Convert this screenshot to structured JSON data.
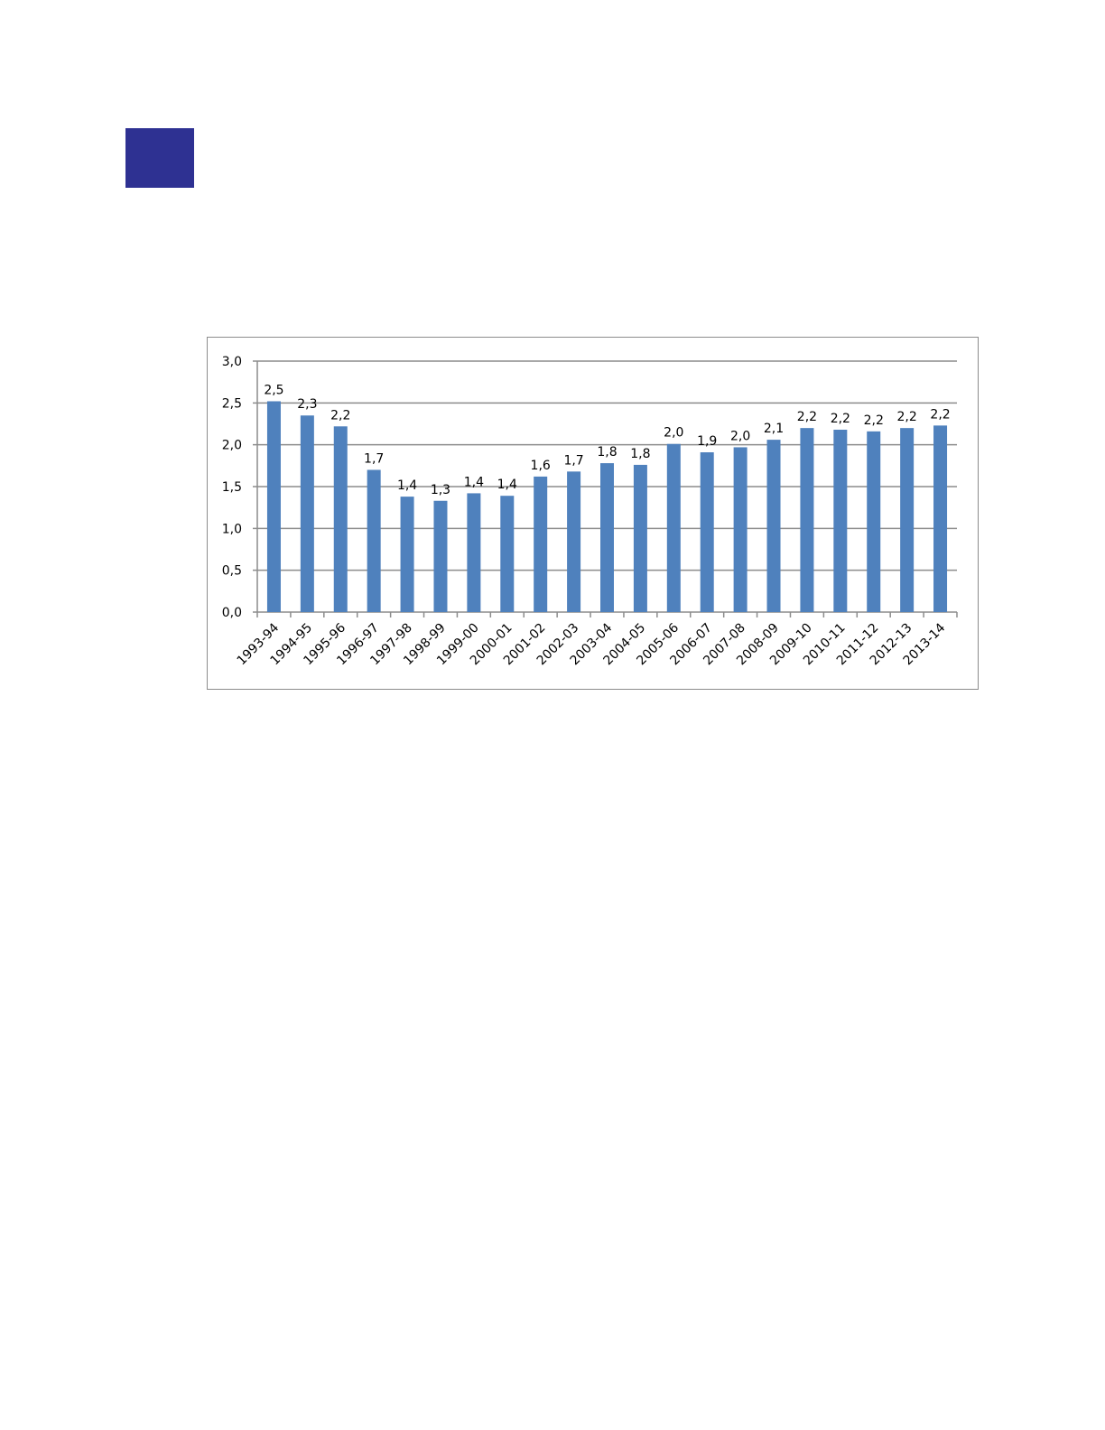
{
  "page": {
    "accent_block_color": "#2e3192"
  },
  "chart_data": {
    "type": "bar",
    "title": "",
    "xlabel": "",
    "ylabel": "",
    "ylim": [
      0,
      3.0
    ],
    "yticks": [
      "0,0",
      "0,5",
      "1,0",
      "1,5",
      "2,0",
      "2,5",
      "3,0"
    ],
    "grid": true,
    "legend": "none",
    "bar_color": "#4f81bd",
    "categories": [
      "1993-94",
      "1994-95",
      "1995-96",
      "1996-97",
      "1997-98",
      "1998-99",
      "1999-00",
      "2000-01",
      "2001-02",
      "2002-03",
      "2003-04",
      "2004-05",
      "2005-06",
      "2006-07",
      "2007-08",
      "2008-09",
      "2009-10",
      "2010-11",
      "2011-12",
      "2012-13",
      "2013-14"
    ],
    "values": [
      2.52,
      2.35,
      2.22,
      1.7,
      1.38,
      1.33,
      1.42,
      1.39,
      1.62,
      1.68,
      1.78,
      1.76,
      2.01,
      1.91,
      1.97,
      2.06,
      2.2,
      2.18,
      2.16,
      2.2,
      2.23
    ],
    "data_labels": [
      "2,5",
      "2,3",
      "2,2",
      "1,7",
      "1,4",
      "1,3",
      "1,4",
      "1,4",
      "1,6",
      "1,7",
      "1,8",
      "1,8",
      "2,0",
      "1,9",
      "2,0",
      "2,1",
      "2,2",
      "2,2",
      "2,2",
      "2,2",
      "2,2"
    ]
  }
}
